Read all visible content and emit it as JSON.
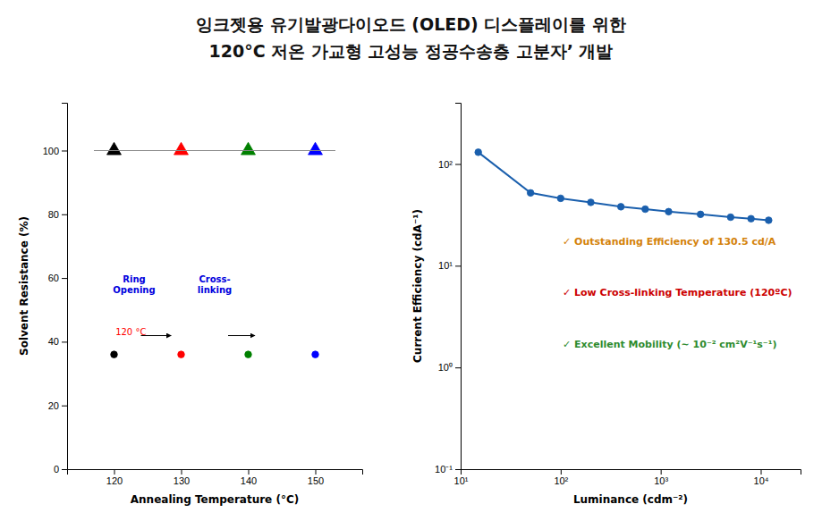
{
  "title": [
    "잉크젯용 유기발광다이오드 (OLED) 디스플레이를 위한",
    "120°C 저온 가교형 고성능 정공수송층 고분자’ 개발"
  ],
  "chart_data": [
    {
      "type": "scatter",
      "xlabel": "Annealing Temperature (°C)",
      "ylabel": "Solvent Resistance (%)",
      "xlim": [
        113,
        157
      ],
      "ylim": [
        0,
        115
      ],
      "xticks": [
        120,
        130,
        140,
        150
      ],
      "yticks": [
        0,
        20,
        40,
        60,
        80,
        100
      ],
      "grid": false,
      "series": [
        {
          "type": "scatter",
          "marker": "triangle",
          "x": [
            120,
            130,
            140,
            150
          ],
          "values": [
            100,
            100,
            100,
            100
          ],
          "colors": [
            "black",
            "red",
            "green",
            "blue"
          ]
        },
        {
          "type": "scatter",
          "marker": "circle",
          "x": [
            120,
            130,
            140,
            150
          ],
          "values": [
            36,
            36,
            36,
            36
          ],
          "colors": [
            "black",
            "red",
            "green",
            "blue"
          ]
        },
        {
          "type": "line",
          "x": [
            117,
            153
          ],
          "values": [
            100,
            100
          ],
          "color": "#888888"
        }
      ],
      "annotations": [
        {
          "text": "Ring\nOpening",
          "color": "#0000dd"
        },
        {
          "text": "Cross-\nlinking",
          "color": "#0000dd"
        },
        {
          "text": "120 °C",
          "color": "red"
        }
      ]
    },
    {
      "type": "line",
      "log": true,
      "xlabel": "Luminance (cdm⁻²)",
      "ylabel": "Current Efficiency (cdA⁻¹)",
      "xlim": [
        10,
        25000
      ],
      "ylim": [
        0.1,
        400
      ],
      "xticks": [
        {
          "value": 10,
          "label": "10¹"
        },
        {
          "value": 100,
          "label": "10²"
        },
        {
          "value": 1000,
          "label": "10³"
        },
        {
          "value": 10000,
          "label": "10⁴"
        }
      ],
      "yticks": [
        {
          "value": 0.1,
          "label": "10⁻¹"
        },
        {
          "value": 1,
          "label": "10⁰"
        },
        {
          "value": 10,
          "label": "10¹"
        },
        {
          "value": 100,
          "label": "10²"
        }
      ],
      "grid": false,
      "x": [
        15,
        50,
        100,
        200,
        400,
        700,
        1200,
        2500,
        5000,
        8000,
        12000
      ],
      "series": [
        {
          "type": "line",
          "marker": "circle",
          "color": "#1a5fad",
          "values": [
            130.5,
            52,
            46,
            42,
            38,
            36,
            34,
            32,
            30,
            29,
            28
          ]
        }
      ],
      "annotations": [
        {
          "text": "✓  Outstanding Efficiency of 130.5 cd/A",
          "color": "#d4820a"
        },
        {
          "text": "✓  Low Cross-linking Temperature (120ºC)",
          "color": "#cc0000"
        },
        {
          "text": "✓  Excellent Mobility (∼ 10⁻² cm²V⁻¹s⁻¹)",
          "color": "#2e8b2e"
        }
      ]
    }
  ]
}
